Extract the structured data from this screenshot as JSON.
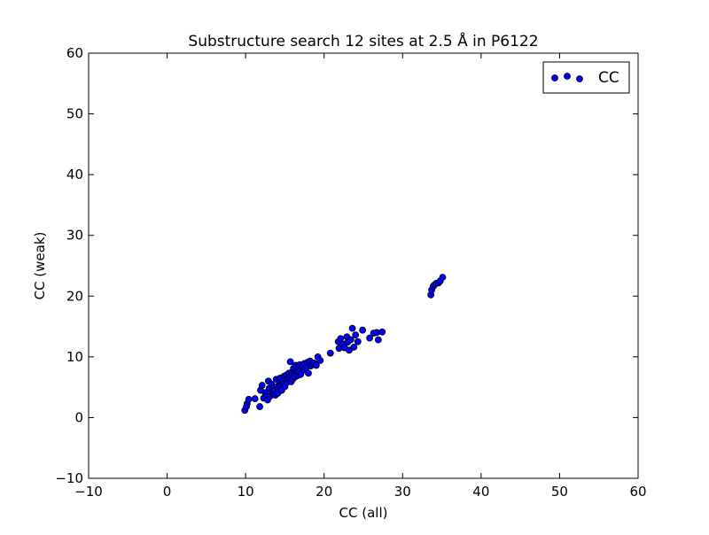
{
  "chart_data": {
    "type": "scatter",
    "title": "Substructure search 12 sites at 2.5 Å in P6122",
    "xlabel": "CC (all)",
    "ylabel": "CC (weak)",
    "xlim": [
      -10,
      60
    ],
    "ylim": [
      -10,
      60
    ],
    "xticks": [
      -10,
      0,
      10,
      20,
      30,
      40,
      50,
      60
    ],
    "yticks": [
      -10,
      0,
      10,
      20,
      30,
      40,
      50,
      60
    ],
    "xtick_labels": [
      "−10",
      "0",
      "10",
      "20",
      "30",
      "40",
      "50",
      "60"
    ],
    "ytick_labels": [
      "−10",
      "0",
      "10",
      "20",
      "30",
      "40",
      "50",
      "60"
    ],
    "grid": false,
    "legend_position": "top-right",
    "series": [
      {
        "name": "CC",
        "color": "#0000ff",
        "edge_color": "#000000",
        "marker": "circle",
        "x": [
          9.9,
          10.2,
          10.4,
          10.1,
          11.2,
          11.8,
          11.9,
          12.1,
          12.3,
          12.5,
          12.6,
          12.8,
          12.9,
          13.0,
          13.1,
          13.3,
          13.4,
          13.5,
          13.6,
          13.7,
          13.8,
          13.9,
          14.0,
          14.1,
          14.2,
          14.3,
          14.4,
          14.5,
          14.6,
          14.7,
          14.8,
          14.9,
          15.0,
          15.1,
          15.2,
          15.3,
          15.4,
          15.5,
          15.6,
          15.7,
          15.8,
          15.9,
          16.0,
          16.1,
          16.2,
          16.3,
          16.4,
          16.5,
          16.6,
          16.7,
          16.8,
          16.9,
          17.0,
          17.2,
          17.4,
          17.5,
          17.7,
          17.9,
          18.0,
          18.2,
          18.3,
          18.5,
          18.7,
          19.0,
          19.2,
          19.5,
          20.8,
          21.8,
          21.9,
          22.1,
          22.4,
          22.6,
          22.9,
          23.0,
          23.2,
          23.4,
          23.6,
          23.8,
          24.0,
          24.3,
          24.9,
          25.8,
          26.3,
          26.7,
          26.9,
          27.4,
          33.6,
          33.7,
          33.9,
          34.1,
          34.3,
          34.6,
          34.8,
          35.1
        ],
        "y": [
          1.2,
          2.3,
          3.0,
          1.8,
          3.1,
          1.8,
          4.5,
          5.3,
          3.2,
          4.1,
          3.5,
          2.9,
          6.0,
          4.8,
          3.5,
          5.5,
          4.2,
          3.9,
          5.0,
          4.4,
          3.7,
          6.3,
          5.1,
          4.0,
          4.8,
          5.9,
          6.5,
          5.3,
          4.5,
          6.0,
          5.6,
          6.8,
          5.1,
          6.2,
          7.0,
          5.8,
          6.4,
          7.3,
          6.6,
          9.2,
          5.9,
          7.5,
          6.3,
          8.1,
          7.2,
          6.7,
          8.6,
          7.4,
          6.9,
          8.0,
          7.6,
          8.7,
          7.1,
          8.3,
          7.8,
          8.9,
          8.2,
          9.1,
          7.3,
          9.3,
          8.5,
          8.8,
          9.0,
          8.6,
          10.0,
          9.4,
          10.6,
          12.5,
          11.4,
          13.0,
          12.1,
          11.5,
          13.3,
          12.4,
          11.1,
          12.8,
          14.7,
          11.6,
          13.6,
          12.5,
          14.4,
          13.1,
          13.9,
          14.0,
          12.8,
          14.1,
          20.2,
          21.0,
          21.6,
          21.9,
          22.1,
          22.2,
          22.5,
          23.1
        ]
      }
    ]
  }
}
